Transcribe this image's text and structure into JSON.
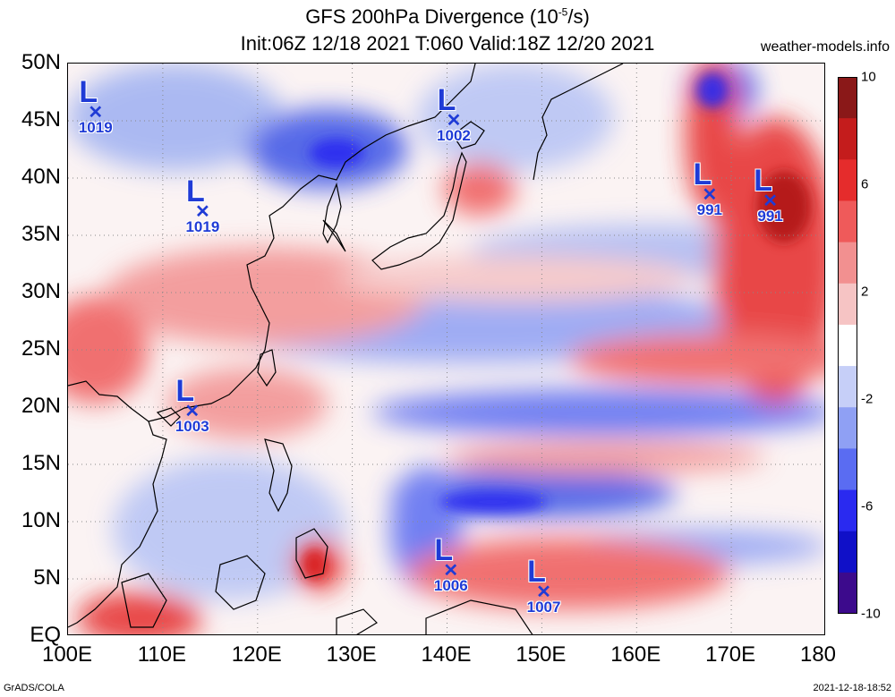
{
  "header": {
    "title_line1_prefix": "GFS 200hPa Divergence (10",
    "title_line1_exp": "-5",
    "title_line1_suffix": "/s)",
    "title_line2": "Init:06Z 12/18 2021 T:060 Valid:18Z 12/20 2021",
    "site": "weather-models.info"
  },
  "footer": {
    "credit": "GrADS/COLA",
    "timestamp": "2021-12-18-18:52"
  },
  "map": {
    "lon_range": [
      100,
      180
    ],
    "lat_range": [
      0,
      50
    ],
    "lat_ticks": [
      {
        "value": 50,
        "label": "50N"
      },
      {
        "value": 45,
        "label": "45N"
      },
      {
        "value": 40,
        "label": "40N"
      },
      {
        "value": 35,
        "label": "35N"
      },
      {
        "value": 30,
        "label": "30N"
      },
      {
        "value": 25,
        "label": "25N"
      },
      {
        "value": 20,
        "label": "20N"
      },
      {
        "value": 15,
        "label": "15N"
      },
      {
        "value": 10,
        "label": "10N"
      },
      {
        "value": 5,
        "label": "5N"
      },
      {
        "value": 0,
        "label": "EQ"
      }
    ],
    "lon_ticks": [
      {
        "value": 100,
        "label": "100E"
      },
      {
        "value": 110,
        "label": "110E"
      },
      {
        "value": 120,
        "label": "120E"
      },
      {
        "value": 130,
        "label": "130E"
      },
      {
        "value": 140,
        "label": "140E"
      },
      {
        "value": 150,
        "label": "150E"
      },
      {
        "value": 160,
        "label": "160E"
      },
      {
        "value": 170,
        "label": "170E"
      },
      {
        "value": 180,
        "label": "180"
      }
    ],
    "grid": "dotted",
    "colors": {
      "positive": "#e0191e",
      "negative": "#1f3bd6",
      "neutral": "#ffffff",
      "coast": "#000000",
      "marker": "#1f3bd6"
    },
    "lows": [
      {
        "symbol": "L",
        "pressure": "1019",
        "lon": 103.0,
        "lat": 45.5
      },
      {
        "symbol": "L",
        "pressure": "1019",
        "lon": 114.3,
        "lat": 36.8
      },
      {
        "symbol": "L",
        "pressure": "1002",
        "lon": 140.8,
        "lat": 44.8
      },
      {
        "symbol": "L",
        "pressure": "991",
        "lon": 167.8,
        "lat": 38.3
      },
      {
        "symbol": "L",
        "pressure": "991",
        "lon": 174.2,
        "lat": 37.7
      },
      {
        "symbol": "L",
        "pressure": "1003",
        "lon": 113.2,
        "lat": 19.4
      },
      {
        "symbol": "L",
        "pressure": "1006",
        "lon": 140.5,
        "lat": 5.5
      },
      {
        "symbol": "L",
        "pressure": "1007",
        "lon": 150.3,
        "lat": 3.6
      }
    ]
  },
  "colorbar": {
    "labels": [
      {
        "value": 10,
        "label": "10"
      },
      {
        "value": 6,
        "label": "6"
      },
      {
        "value": 2,
        "label": "2"
      },
      {
        "value": -2,
        "label": "-2"
      },
      {
        "value": -6,
        "label": "-6"
      },
      {
        "value": -10,
        "label": "-10"
      }
    ],
    "colors": [
      "#3c0a8c",
      "#1010c8",
      "#2a2af0",
      "#5a6cf2",
      "#8fa0f4",
      "#c6cff8",
      "#ffffff",
      "#f6c4c4",
      "#f29090",
      "#ef5a5a",
      "#e52c2c",
      "#c41c1c",
      "#8a1818"
    ]
  }
}
